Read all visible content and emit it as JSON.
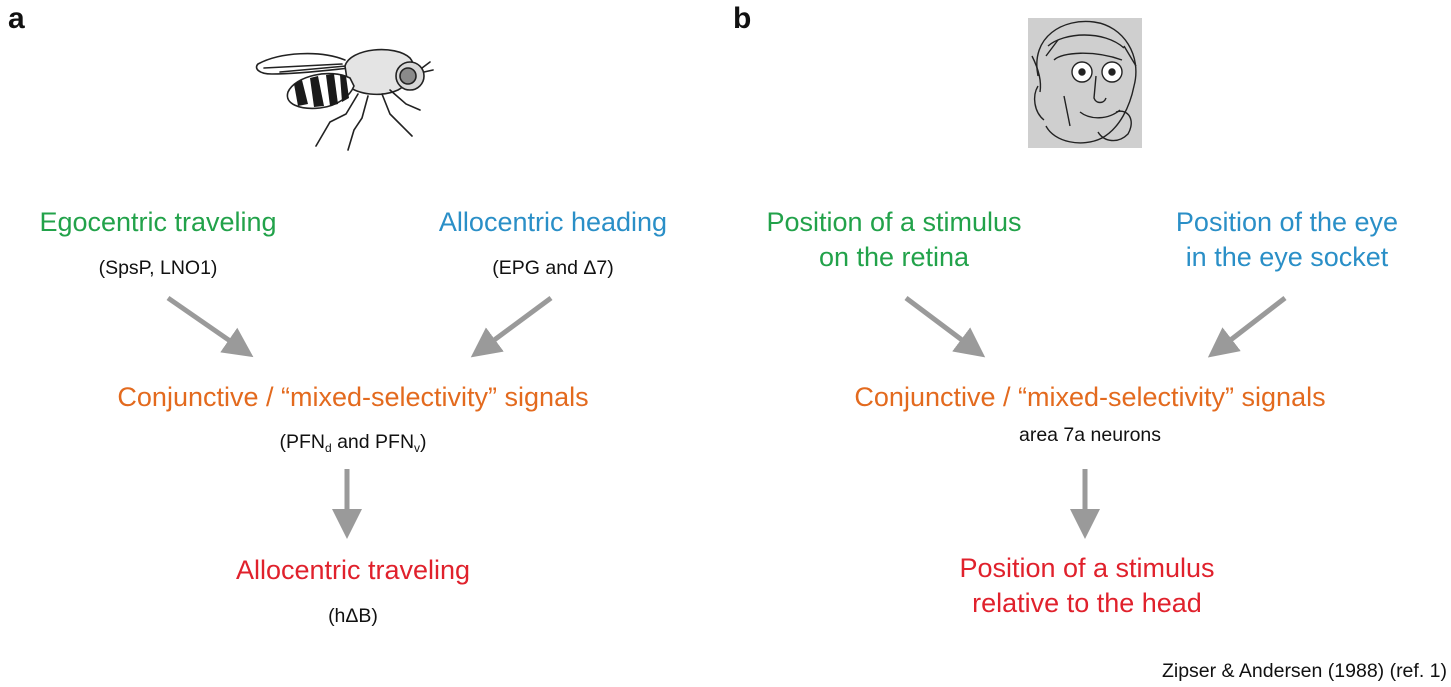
{
  "panel_a": {
    "label": "a",
    "organism": "fly-illustration",
    "input_left": {
      "title": "Egocentric traveling",
      "subtitle": "(SpsP, LNO1)"
    },
    "input_right": {
      "title": "Allocentric heading",
      "subtitle": "(EPG and Δ7)"
    },
    "integration": {
      "title": "Conjunctive / “mixed-selectivity” signals",
      "subtitle_pre": "(PFN",
      "subtitle_sub1": "d",
      "subtitle_mid": " and PFN",
      "subtitle_sub2": "v",
      "subtitle_post": ")"
    },
    "output": {
      "title": "Allocentric traveling",
      "subtitle": "(hΔB)"
    }
  },
  "panel_b": {
    "label": "b",
    "organism": "monkey-illustration",
    "input_left": {
      "title_line1": "Position of a stimulus",
      "title_line2": "on the retina"
    },
    "input_right": {
      "title_line1": "Position of the eye",
      "title_line2": "in the eye socket"
    },
    "integration": {
      "title": "Conjunctive / “mixed-selectivity” signals",
      "subtitle": "area 7a neurons"
    },
    "output": {
      "title_line1": "Position of a stimulus",
      "title_line2": "relative to the head"
    }
  },
  "credit": "Zipser & Andersen (1988) (ref. 1)",
  "colors": {
    "egocentric": "#22a24a",
    "allocentric_heading": "#2a8fc7",
    "conjunctive": "#e36a1e",
    "output": "#e0212c",
    "arrow": "#9a9a9a"
  }
}
